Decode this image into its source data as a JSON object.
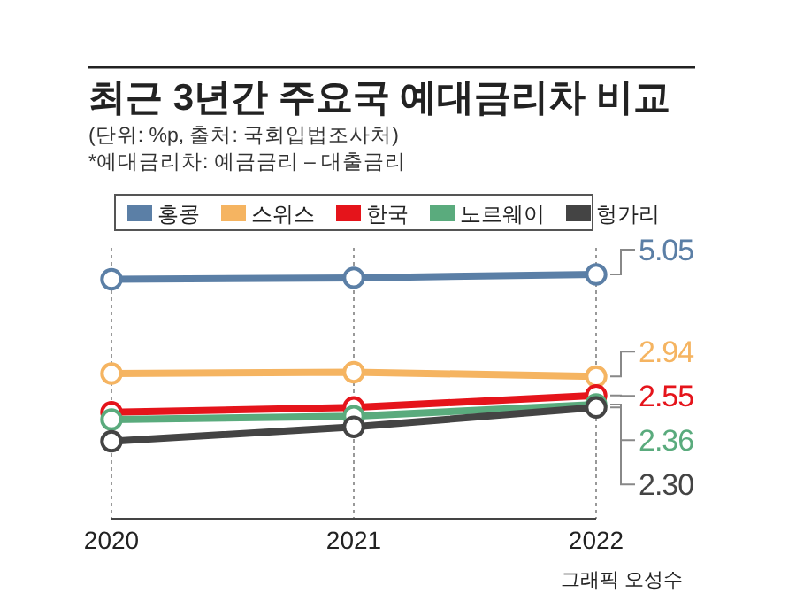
{
  "chart_data": {
    "type": "line",
    "title": "최근 3년간 주요국 예대금리차 비교",
    "subtitle": "(단위: %p, 출처: 국회입법조사처)",
    "annotations": [
      "*예대금리차: 예금금리 – 대출금리",
      "그래픽 오성수"
    ],
    "categories": [
      "2020",
      "2021",
      "2022"
    ],
    "series": [
      {
        "name": "홍콩",
        "color": "#5b7fa6",
        "values": [
          4.95,
          4.98,
          5.05
        ],
        "value_labels": [
          null,
          null,
          "5.05"
        ]
      },
      {
        "name": "스위스",
        "color": "#f5b461",
        "values": [
          3.0,
          3.03,
          2.94
        ],
        "value_labels": [
          null,
          null,
          "2.94"
        ]
      },
      {
        "name": "한국",
        "color": "#e5141b",
        "values": [
          2.2,
          2.3,
          2.55
        ],
        "value_labels": [
          null,
          null,
          "2.55"
        ]
      },
      {
        "name": "노르웨이",
        "color": "#5aab7d",
        "values": [
          2.05,
          2.12,
          2.36
        ],
        "value_labels": [
          null,
          null,
          "2.36"
        ]
      },
      {
        "name": "헝가리",
        "color": "#444444",
        "values": [
          1.6,
          1.9,
          2.3
        ],
        "value_labels": [
          null,
          null,
          "2.30"
        ]
      }
    ],
    "ylim": [
      0,
      5.6
    ],
    "tick_labels": "x",
    "grid": "x",
    "legend": "top",
    "marker": "circle",
    "line_style": "solid"
  }
}
